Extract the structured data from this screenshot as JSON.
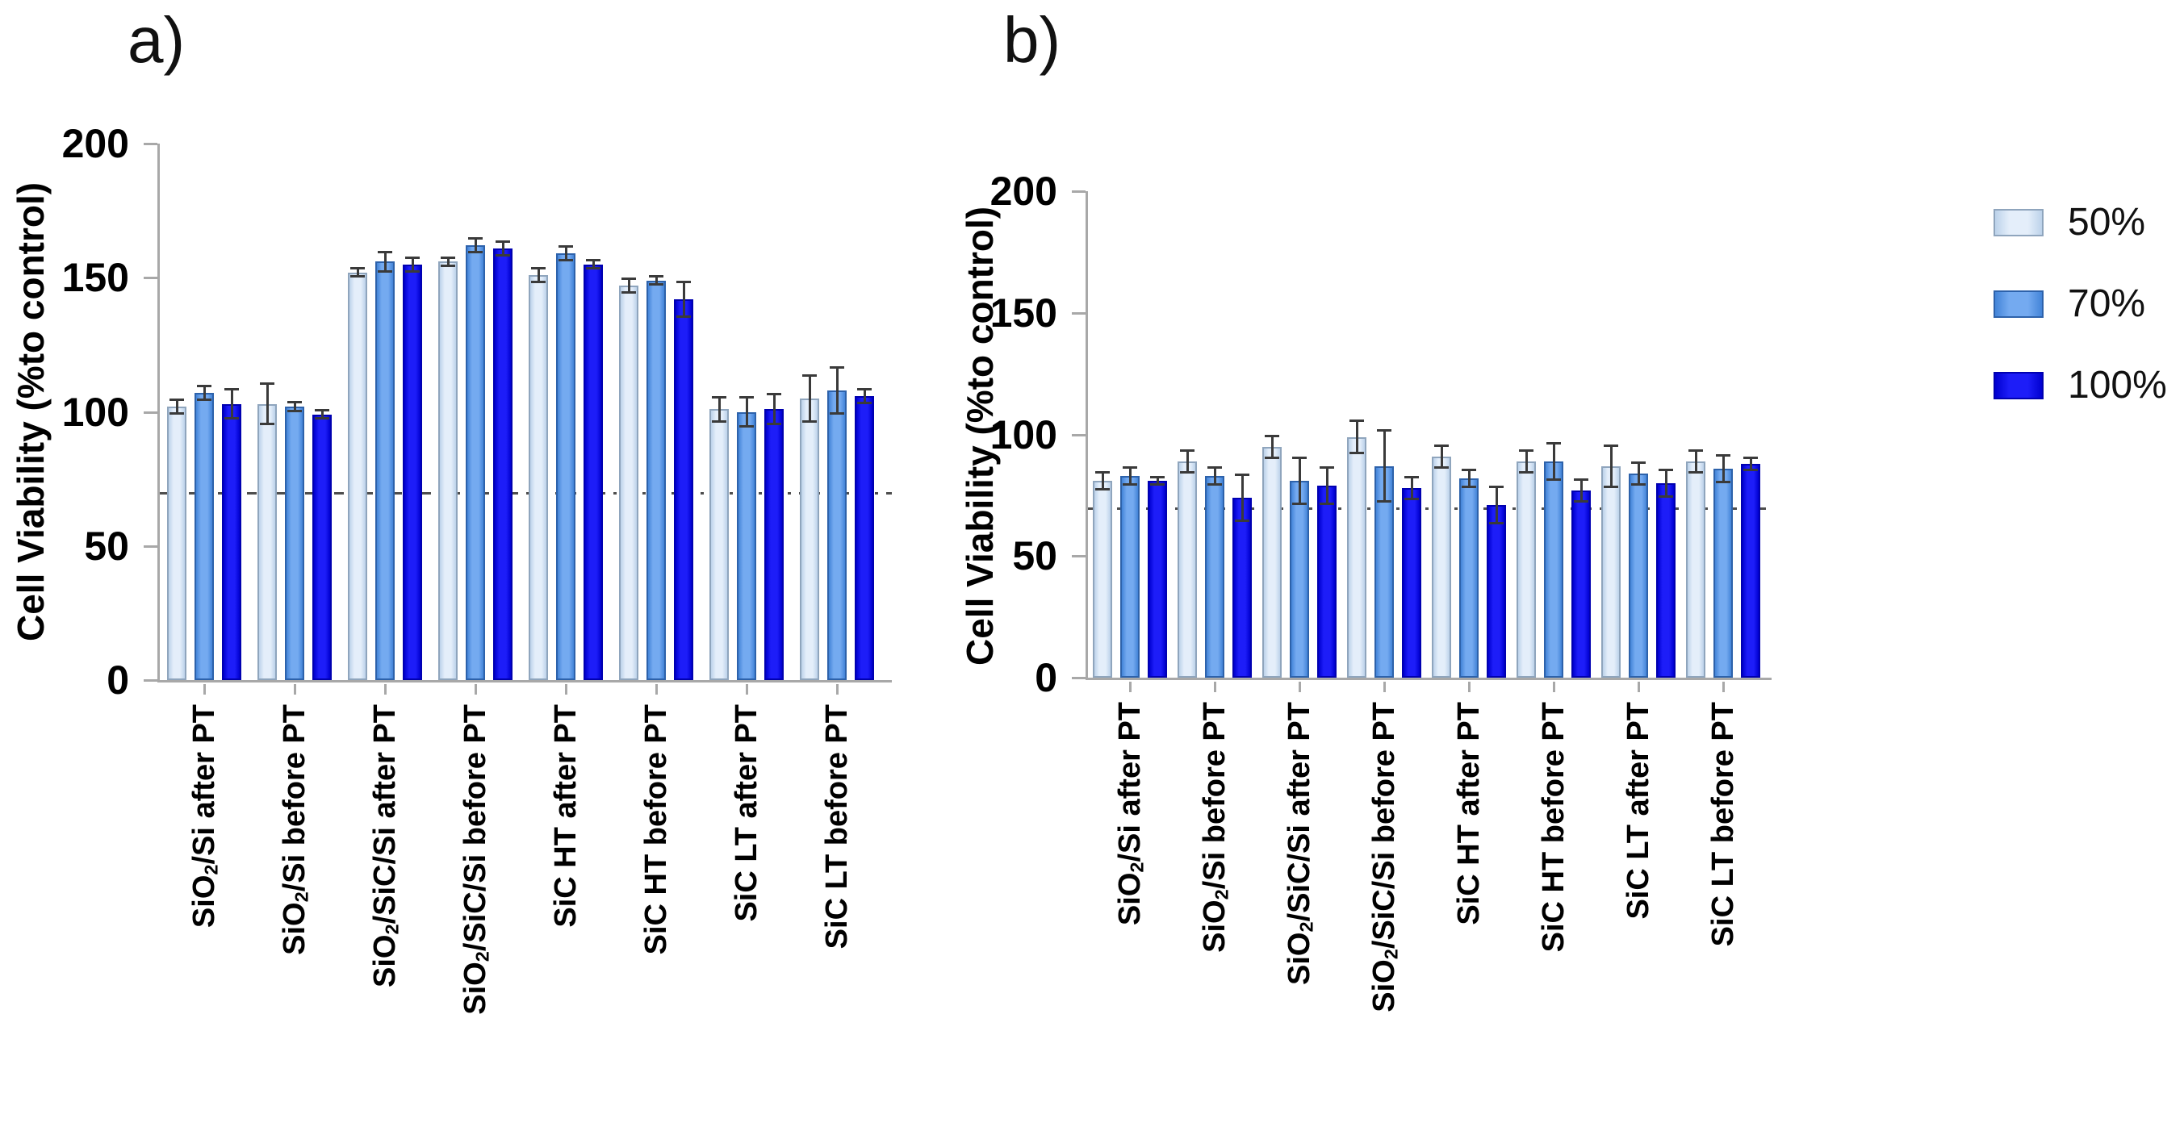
{
  "figure": {
    "background": "#ffffff",
    "description_visible_text_only": true
  },
  "style": {
    "axis_color": "#a8a8a8",
    "tick_text_color": "#000000",
    "error_bar_color": "#3a3a3a",
    "ref_line_color": "#4d4d4d"
  },
  "legend": {
    "position": "top-right",
    "items": [
      {
        "label": "50%",
        "fill_center": "#e4eefa",
        "fill_edge": "#bcd2ea",
        "border": "#8fa5bd"
      },
      {
        "label": "70%",
        "fill_center": "#74aaf0",
        "fill_edge": "#4384d8",
        "border": "#2d62ab"
      },
      {
        "label": "100%",
        "fill_center": "#1d1df8",
        "fill_edge": "#0000d0",
        "border": "#0000b0"
      }
    ]
  },
  "chart_data": [
    {
      "id": "a",
      "type": "bar",
      "panel_letter": "a)",
      "ylabel": "Cell Viability (%to control)",
      "xlabel": "",
      "ylim": [
        0,
        200
      ],
      "yticks": [
        0,
        50,
        100,
        150,
        200
      ],
      "grid": false,
      "reference_line_y": 70,
      "legend_entries": [
        "50%",
        "70%",
        "100%"
      ],
      "categories": [
        "SiO2/Si after PT",
        "SiO2/Si before PT",
        "SiO2/SiC/Si after PT",
        "SiO2/SiC/Si before PT",
        "SiC HT after PT",
        "SiC HT before PT",
        "SiC LT after PT",
        "SiC LT before PT"
      ],
      "series": [
        {
          "name": "50%",
          "values": [
            102,
            103,
            152,
            156,
            151,
            147,
            101,
            105
          ],
          "errors": [
            3,
            8,
            2,
            2,
            3,
            3,
            5,
            9
          ]
        },
        {
          "name": "70%",
          "values": [
            107,
            102,
            156,
            162,
            159,
            149,
            100,
            108
          ],
          "errors": [
            3,
            2,
            4,
            3,
            3,
            2,
            6,
            9
          ]
        },
        {
          "name": "100%",
          "values": [
            103,
            99,
            155,
            161,
            155,
            142,
            101,
            106
          ],
          "errors": [
            6,
            2,
            3,
            3,
            2,
            7,
            6,
            3
          ]
        }
      ]
    },
    {
      "id": "b",
      "type": "bar",
      "panel_letter": "b)",
      "ylabel": "Cell Viability (%to control)",
      "xlabel": "",
      "ylim": [
        0,
        200
      ],
      "yticks": [
        0,
        50,
        100,
        150,
        200
      ],
      "grid": false,
      "reference_line_y": 70,
      "legend_entries": [
        "50%",
        "70%",
        "100%"
      ],
      "categories": [
        "SiO2/Si after PT",
        "SiO2/Si before PT",
        "SiO2/SiC/Si after PT",
        "SiO2/SiC/Si before PT",
        "SiC HT after PT",
        "SiC HT before PT",
        "SiC LT after PT",
        "SiC LT before PT"
      ],
      "series": [
        {
          "name": "50%",
          "values": [
            81,
            89,
            95,
            99,
            91,
            89,
            87,
            89
          ],
          "errors": [
            4,
            5,
            5,
            7,
            5,
            5,
            9,
            5
          ]
        },
        {
          "name": "70%",
          "values": [
            83,
            83,
            81,
            87,
            82,
            89,
            84,
            86
          ],
          "errors": [
            4,
            4,
            10,
            15,
            4,
            8,
            5,
            6
          ]
        },
        {
          "name": "100%",
          "values": [
            81,
            74,
            79,
            78,
            71,
            77,
            80,
            88
          ],
          "errors": [
            2,
            10,
            8,
            5,
            8,
            5,
            6,
            3
          ]
        }
      ]
    }
  ]
}
